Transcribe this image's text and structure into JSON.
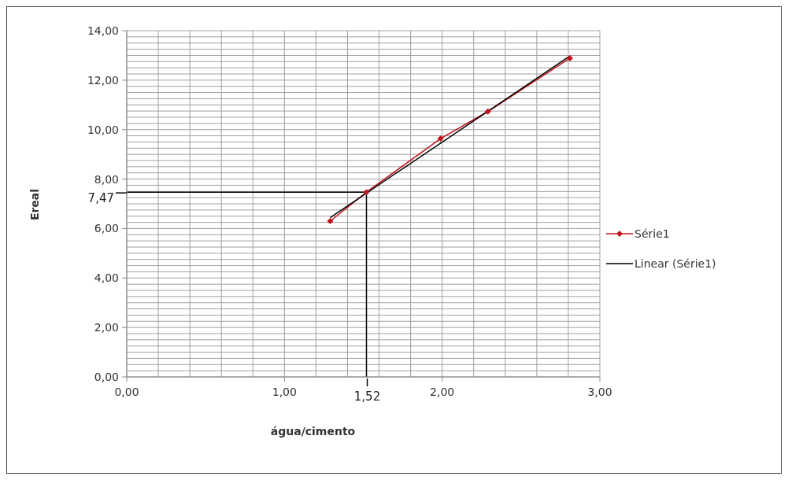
{
  "chart_data": {
    "type": "line",
    "xlabel": "água/cimento",
    "ylabel": "Ereal",
    "xlim": [
      0,
      3
    ],
    "ylim": [
      0,
      14
    ],
    "xticks": [
      {
        "value": 0,
        "label": "0,00"
      },
      {
        "value": 0.2,
        "label": null
      },
      {
        "value": 0.4,
        "label": null
      },
      {
        "value": 0.6,
        "label": null
      },
      {
        "value": 0.8,
        "label": null
      },
      {
        "value": 1,
        "label": "1,00"
      },
      {
        "value": 1.2,
        "label": null
      },
      {
        "value": 1.4,
        "label": null
      },
      {
        "value": 1.6,
        "label": null
      },
      {
        "value": 1.8,
        "label": null
      },
      {
        "value": 2,
        "label": "2,00"
      },
      {
        "value": 2.2,
        "label": null
      },
      {
        "value": 2.4,
        "label": null
      },
      {
        "value": 2.6,
        "label": null
      },
      {
        "value": 2.8,
        "label": null
      },
      {
        "value": 3,
        "label": "3,00"
      }
    ],
    "yticks": [
      {
        "value": 0,
        "label": "0,00"
      },
      {
        "value": 0.25,
        "label": null
      },
      {
        "value": 0.5,
        "label": null
      },
      {
        "value": 0.75,
        "label": null
      },
      {
        "value": 1,
        "label": null
      },
      {
        "value": 1.25,
        "label": null
      },
      {
        "value": 1.5,
        "label": null
      },
      {
        "value": 1.75,
        "label": null
      },
      {
        "value": 2,
        "label": "2,00"
      },
      {
        "value": 2.25,
        "label": null
      },
      {
        "value": 2.5,
        "label": null
      },
      {
        "value": 2.75,
        "label": null
      },
      {
        "value": 3,
        "label": null
      },
      {
        "value": 3.25,
        "label": null
      },
      {
        "value": 3.5,
        "label": null
      },
      {
        "value": 3.75,
        "label": null
      },
      {
        "value": 4,
        "label": "4,00"
      },
      {
        "value": 4.25,
        "label": null
      },
      {
        "value": 4.5,
        "label": null
      },
      {
        "value": 4.75,
        "label": null
      },
      {
        "value": 5,
        "label": null
      },
      {
        "value": 5.25,
        "label": null
      },
      {
        "value": 5.5,
        "label": null
      },
      {
        "value": 5.75,
        "label": null
      },
      {
        "value": 6,
        "label": "6,00"
      },
      {
        "value": 6.25,
        "label": null
      },
      {
        "value": 6.5,
        "label": null
      },
      {
        "value": 6.75,
        "label": null
      },
      {
        "value": 7,
        "label": null
      },
      {
        "value": 7.25,
        "label": null
      },
      {
        "value": 7.5,
        "label": null
      },
      {
        "value": 7.75,
        "label": null
      },
      {
        "value": 8,
        "label": "8,00"
      },
      {
        "value": 8.25,
        "label": null
      },
      {
        "value": 8.5,
        "label": null
      },
      {
        "value": 8.75,
        "label": null
      },
      {
        "value": 9,
        "label": null
      },
      {
        "value": 9.25,
        "label": null
      },
      {
        "value": 9.5,
        "label": null
      },
      {
        "value": 9.75,
        "label": null
      },
      {
        "value": 10,
        "label": "10,00"
      },
      {
        "value": 10.25,
        "label": null
      },
      {
        "value": 10.5,
        "label": null
      },
      {
        "value": 10.75,
        "label": null
      },
      {
        "value": 11,
        "label": null
      },
      {
        "value": 11.25,
        "label": null
      },
      {
        "value": 11.5,
        "label": null
      },
      {
        "value": 11.75,
        "label": null
      },
      {
        "value": 12,
        "label": "12,00"
      },
      {
        "value": 12.25,
        "label": null
      },
      {
        "value": 12.5,
        "label": null
      },
      {
        "value": 12.75,
        "label": null
      },
      {
        "value": 13,
        "label": null
      },
      {
        "value": 13.25,
        "label": null
      },
      {
        "value": 13.5,
        "label": null
      },
      {
        "value": 13.75,
        "label": null
      },
      {
        "value": 14,
        "label": "14,00"
      }
    ],
    "grid": true,
    "legend": "right",
    "series": [
      {
        "name": "Série1",
        "color": "#c0141c",
        "marker": "diamond",
        "line_style": "solid",
        "x": [
          1.29,
          1.52,
          1.99,
          2.29,
          2.81
        ],
        "values": [
          6.3,
          7.47,
          9.64,
          10.73,
          12.89
        ]
      },
      {
        "name": "Linear (Série1)",
        "color": "#000000",
        "marker": "none",
        "line_style": "solid",
        "x": [
          1.29,
          2.81
        ],
        "values": [
          6.44,
          12.98
        ]
      }
    ],
    "ref_lines": [
      {
        "axis": "x",
        "value": 1.52,
        "label": "1,52",
        "color": "#000000"
      },
      {
        "axis": "y",
        "value": 7.47,
        "label": "7,47",
        "color": "#000000"
      }
    ]
  }
}
